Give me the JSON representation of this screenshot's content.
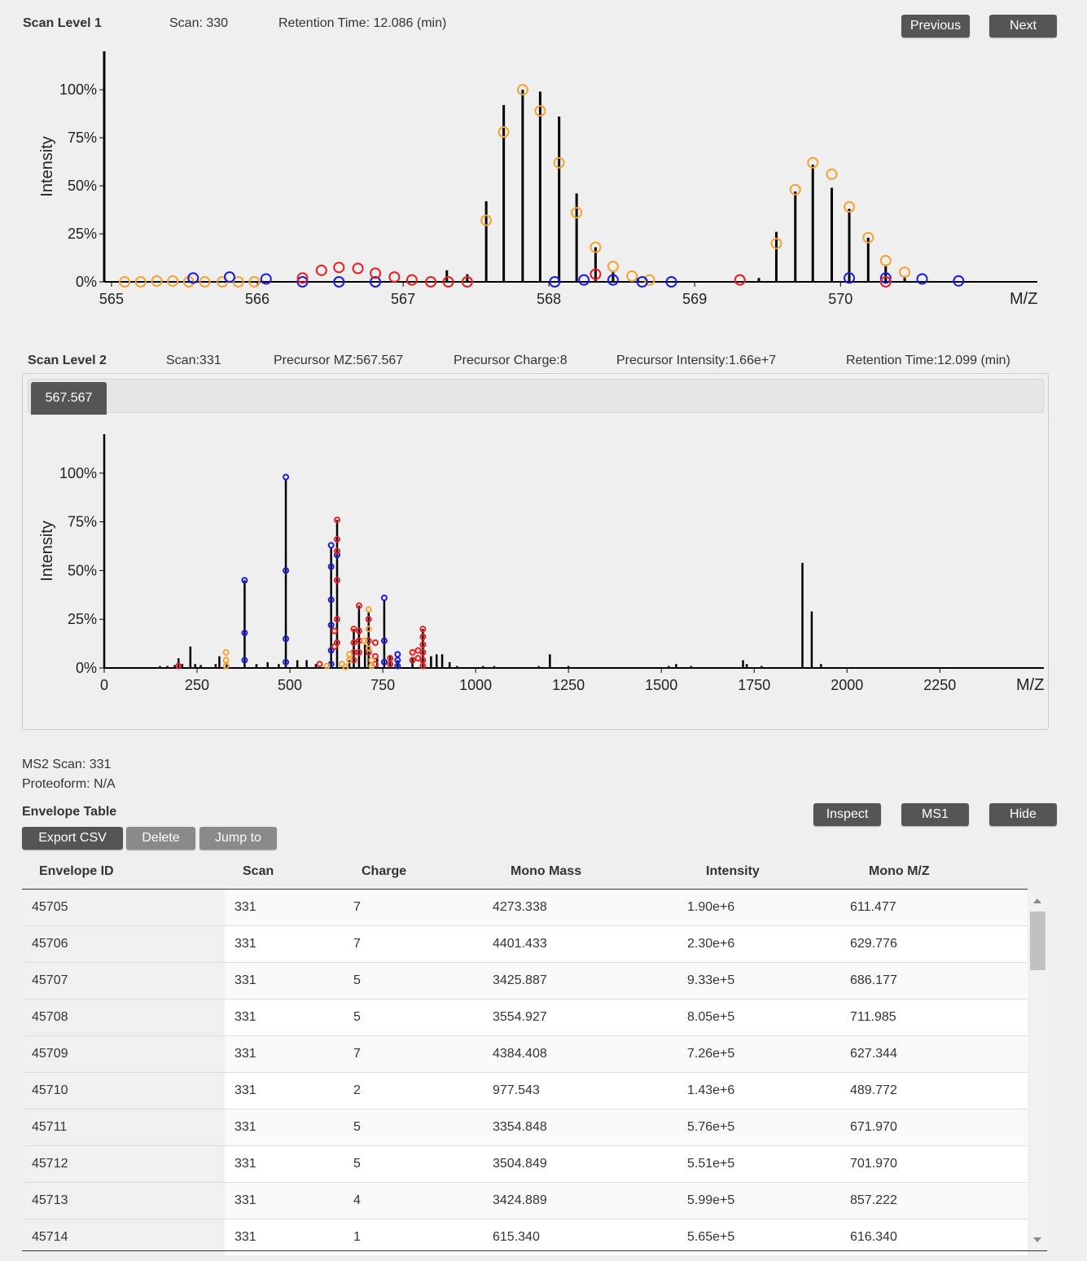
{
  "ms1": {
    "title": "Scan Level 1",
    "scan": "Scan: 330",
    "retention": "Retention Time: 12.086 (min)",
    "prev_label": "Previous",
    "next_label": "Next",
    "ylabel": "Intensity",
    "xlabel": "M/Z"
  },
  "ms2": {
    "title": "Scan Level 2",
    "scan": "Scan:331",
    "precursor_mz": "Precursor MZ:567.567",
    "precursor_charge": "Precursor Charge:8",
    "precursor_intensity": "Precursor Intensity:1.66e+7",
    "retention": "Retention Time:12.099 (min)",
    "tab_label": "567.567",
    "ylabel": "Intensity",
    "xlabel": "M/Z"
  },
  "info": {
    "ms2_scan": "MS2 Scan: 331",
    "proteoform": "Proteoform: N/A",
    "table_title": "Envelope Table"
  },
  "buttons": {
    "inspect": "Inspect",
    "ms1": "MS1",
    "hide": "Hide",
    "export": "Export CSV",
    "delete": "Delete",
    "jump": "Jump to"
  },
  "colors": {
    "orange": "#f7a230",
    "red": "#ee1c1c",
    "blue": "#1a1ae6",
    "button": "#555555"
  },
  "table": {
    "headers": [
      "Envelope ID",
      "Scan",
      "Charge",
      "Mono Mass",
      "Intensity",
      "Mono M/Z"
    ],
    "rows": [
      [
        "45705",
        "331",
        "7",
        "4273.338",
        "1.90e+6",
        "611.477"
      ],
      [
        "45706",
        "331",
        "7",
        "4401.433",
        "2.30e+6",
        "629.776"
      ],
      [
        "45707",
        "331",
        "5",
        "3425.887",
        "9.33e+5",
        "686.177"
      ],
      [
        "45708",
        "331",
        "5",
        "3554.927",
        "8.05e+5",
        "711.985"
      ],
      [
        "45709",
        "331",
        "7",
        "4384.408",
        "7.26e+5",
        "627.344"
      ],
      [
        "45710",
        "331",
        "2",
        "977.543",
        "1.43e+6",
        "489.772"
      ],
      [
        "45711",
        "331",
        "5",
        "3354.848",
        "5.76e+5",
        "671.970"
      ],
      [
        "45712",
        "331",
        "5",
        "3504.849",
        "5.51e+5",
        "701.970"
      ],
      [
        "45713",
        "331",
        "4",
        "3424.889",
        "5.99e+5",
        "857.222"
      ],
      [
        "45714",
        "331",
        "1",
        "615.340",
        "5.65e+5",
        "616.340"
      ]
    ]
  },
  "chart_data": [
    {
      "type": "scatter",
      "ylabel": "Intensity",
      "xlabel": "M/Z",
      "xlim": [
        564.95,
        571.35
      ],
      "ylim": [
        0,
        1.2
      ],
      "x_ticks": [
        565,
        566,
        567,
        568,
        569,
        570
      ],
      "y_ticks": [
        0,
        0.25,
        0.5,
        0.75,
        1.0
      ],
      "y_tick_labels": [
        "0%",
        "25%",
        "50%",
        "75%",
        "100%"
      ],
      "peaks": [
        {
          "x": 564.95,
          "y": 1.2
        },
        {
          "x": 567.3,
          "y": 0.06
        },
        {
          "x": 567.44,
          "y": 0.04
        },
        {
          "x": 567.57,
          "y": 0.42
        },
        {
          "x": 567.69,
          "y": 0.92
        },
        {
          "x": 567.82,
          "y": 1.0
        },
        {
          "x": 567.94,
          "y": 0.99
        },
        {
          "x": 568.07,
          "y": 0.86
        },
        {
          "x": 568.19,
          "y": 0.46
        },
        {
          "x": 568.32,
          "y": 0.18
        },
        {
          "x": 568.44,
          "y": 0.05
        },
        {
          "x": 568.61,
          "y": 0.02
        },
        {
          "x": 569.44,
          "y": 0.02
        },
        {
          "x": 569.56,
          "y": 0.26
        },
        {
          "x": 569.69,
          "y": 0.47
        },
        {
          "x": 569.81,
          "y": 0.61
        },
        {
          "x": 569.94,
          "y": 0.49
        },
        {
          "x": 570.06,
          "y": 0.38
        },
        {
          "x": 570.19,
          "y": 0.23
        },
        {
          "x": 570.31,
          "y": 0.09
        },
        {
          "x": 570.44,
          "y": 0.03
        }
      ],
      "envelopes": [
        {
          "color": "orange",
          "points": [
            [
              565.09,
              0
            ],
            [
              565.2,
              0
            ],
            [
              565.31,
              0.004
            ],
            [
              565.42,
              0.004
            ],
            [
              565.53,
              0
            ],
            [
              565.64,
              0
            ],
            [
              565.76,
              0
            ],
            [
              565.87,
              0
            ],
            [
              565.98,
              0
            ],
            [
              567.57,
              0.32
            ],
            [
              567.69,
              0.78
            ],
            [
              567.82,
              1.0
            ],
            [
              567.94,
              0.89
            ],
            [
              568.07,
              0.62
            ],
            [
              568.19,
              0.36
            ],
            [
              568.32,
              0.18
            ],
            [
              568.44,
              0.08
            ],
            [
              568.57,
              0.03
            ],
            [
              568.69,
              0.01
            ],
            [
              569.56,
              0.2
            ],
            [
              569.69,
              0.48
            ],
            [
              569.81,
              0.62
            ],
            [
              569.94,
              0.56
            ],
            [
              570.06,
              0.39
            ],
            [
              570.19,
              0.23
            ],
            [
              570.31,
              0.11
            ],
            [
              570.44,
              0.05
            ]
          ]
        },
        {
          "color": "blue",
          "points": [
            [
              565.56,
              0.02
            ],
            [
              565.81,
              0.025
            ],
            [
              566.06,
              0.015
            ],
            [
              566.31,
              0
            ],
            [
              566.56,
              0
            ],
            [
              566.81,
              0
            ],
            [
              568.04,
              0
            ],
            [
              568.24,
              0.01
            ],
            [
              568.44,
              0.01
            ],
            [
              568.64,
              0
            ],
            [
              568.84,
              0
            ],
            [
              570.06,
              0.02
            ],
            [
              570.31,
              0.02
            ],
            [
              570.56,
              0.015
            ],
            [
              570.81,
              0.005
            ]
          ]
        },
        {
          "color": "red",
          "points": [
            [
              566.31,
              0.02
            ],
            [
              566.44,
              0.06
            ],
            [
              566.56,
              0.075
            ],
            [
              566.69,
              0.07
            ],
            [
              566.81,
              0.045
            ],
            [
              566.94,
              0.025
            ],
            [
              567.06,
              0.01
            ],
            [
              567.19,
              0
            ],
            [
              567.31,
              0
            ],
            [
              567.44,
              0
            ],
            [
              568.32,
              0.04
            ],
            [
              569.31,
              0.01
            ],
            [
              570.31,
              0
            ]
          ]
        }
      ]
    },
    {
      "type": "scatter",
      "ylabel": "Intensity",
      "xlabel": "M/Z",
      "xlim": [
        0,
        2530
      ],
      "ylim": [
        0,
        1.2
      ],
      "x_ticks": [
        0,
        250,
        500,
        750,
        1000,
        1250,
        1500,
        1750,
        2000,
        2250
      ],
      "y_ticks": [
        0,
        0.25,
        0.5,
        0.75,
        1.0
      ],
      "y_tick_labels": [
        "0%",
        "25%",
        "50%",
        "75%",
        "100%"
      ],
      "peaks": [
        {
          "x": 0,
          "y": 1.2
        },
        {
          "x": 150,
          "y": 0.01
        },
        {
          "x": 170,
          "y": 0.01
        },
        {
          "x": 190,
          "y": 0.015
        },
        {
          "x": 200,
          "y": 0.05
        },
        {
          "x": 210,
          "y": 0.02
        },
        {
          "x": 232,
          "y": 0.11
        },
        {
          "x": 245,
          "y": 0.02
        },
        {
          "x": 260,
          "y": 0.015
        },
        {
          "x": 300,
          "y": 0.02
        },
        {
          "x": 310,
          "y": 0.06
        },
        {
          "x": 330,
          "y": 0.03
        },
        {
          "x": 378,
          "y": 0.45
        },
        {
          "x": 410,
          "y": 0.02
        },
        {
          "x": 440,
          "y": 0.03
        },
        {
          "x": 470,
          "y": 0.02
        },
        {
          "x": 489,
          "y": 0.97
        },
        {
          "x": 520,
          "y": 0.04
        },
        {
          "x": 545,
          "y": 0.04
        },
        {
          "x": 570,
          "y": 0.02
        },
        {
          "x": 611,
          "y": 0.62
        },
        {
          "x": 627,
          "y": 0.76
        },
        {
          "x": 660,
          "y": 0.04
        },
        {
          "x": 672,
          "y": 0.2
        },
        {
          "x": 686,
          "y": 0.32
        },
        {
          "x": 702,
          "y": 0.12
        },
        {
          "x": 712,
          "y": 0.29
        },
        {
          "x": 735,
          "y": 0.05
        },
        {
          "x": 754,
          "y": 0.35
        },
        {
          "x": 770,
          "y": 0.06
        },
        {
          "x": 790,
          "y": 0.04
        },
        {
          "x": 830,
          "y": 0.05
        },
        {
          "x": 858,
          "y": 0.2
        },
        {
          "x": 880,
          "y": 0.06
        },
        {
          "x": 895,
          "y": 0.07
        },
        {
          "x": 910,
          "y": 0.07
        },
        {
          "x": 930,
          "y": 0.03
        },
        {
          "x": 950,
          "y": 0.01
        },
        {
          "x": 1020,
          "y": 0.01
        },
        {
          "x": 1050,
          "y": 0.01
        },
        {
          "x": 1170,
          "y": 0.01
        },
        {
          "x": 1200,
          "y": 0.07
        },
        {
          "x": 1250,
          "y": 0.01
        },
        {
          "x": 1520,
          "y": 0.01
        },
        {
          "x": 1540,
          "y": 0.02
        },
        {
          "x": 1580,
          "y": 0.01
        },
        {
          "x": 1720,
          "y": 0.04
        },
        {
          "x": 1730,
          "y": 0.02
        },
        {
          "x": 1770,
          "y": 0.01
        },
        {
          "x": 1880,
          "y": 0.54
        },
        {
          "x": 1905,
          "y": 0.29
        },
        {
          "x": 1930,
          "y": 0.02
        }
      ],
      "envelopes": [
        {
          "color": "blue",
          "points": [
            [
              378,
              0.45
            ],
            [
              378,
              0.18
            ],
            [
              378,
              0.04
            ],
            [
              489,
              0.98
            ],
            [
              489,
              0.5
            ],
            [
              489,
              0.15
            ],
            [
              489,
              0.03
            ],
            [
              611,
              0.63
            ],
            [
              611,
              0.52
            ],
            [
              611,
              0.35
            ],
            [
              611,
              0.22
            ],
            [
              611,
              0.09
            ],
            [
              611,
              0.02
            ],
            [
              627,
              0.58
            ],
            [
              754,
              0.36
            ],
            [
              754,
              0.14
            ],
            [
              754,
              0.03
            ],
            [
              790,
              0.07
            ],
            [
              790,
              0.04
            ],
            [
              790,
              0.01
            ]
          ]
        },
        {
          "color": "red",
          "points": [
            [
              200,
              0.01
            ],
            [
              580,
              0.02
            ],
            [
              620,
              0.19
            ],
            [
              620,
              0.11
            ],
            [
              627,
              0.76
            ],
            [
              627,
              0.66
            ],
            [
              627,
              0.6
            ],
            [
              627,
              0.45
            ],
            [
              627,
              0.25
            ],
            [
              627,
              0.13
            ],
            [
              686,
              0.32
            ],
            [
              686,
              0.19
            ],
            [
              686,
              0.14
            ],
            [
              686,
              0.08
            ],
            [
              672,
              0.2
            ],
            [
              672,
              0.13
            ],
            [
              672,
              0.08
            ],
            [
              672,
              0.04
            ],
            [
              712,
              0.25
            ],
            [
              712,
              0.14
            ],
            [
              712,
              0.08
            ],
            [
              730,
              0.13
            ],
            [
              730,
              0.06
            ],
            [
              730,
              0.02
            ],
            [
              770,
              0.05
            ],
            [
              770,
              0.02
            ],
            [
              830,
              0.08
            ],
            [
              830,
              0.04
            ],
            [
              845,
              0.09
            ],
            [
              845,
              0.05
            ],
            [
              858,
              0.2
            ],
            [
              858,
              0.16
            ],
            [
              858,
              0.12
            ],
            [
              858,
              0.08
            ],
            [
              858,
              0.04
            ],
            [
              858,
              0.01
            ]
          ]
        },
        {
          "color": "orange",
          "points": [
            [
              328,
              0.08
            ],
            [
              328,
              0.04
            ],
            [
              328,
              0.01
            ],
            [
              600,
              0.01
            ],
            [
              640,
              0.02
            ],
            [
              650,
              0.005
            ],
            [
              660,
              0.04
            ],
            [
              700,
              0.14
            ],
            [
              712,
              0.3
            ],
            [
              712,
              0.2
            ],
            [
              712,
              0.1
            ],
            [
              720,
              0.04
            ],
            [
              720,
              0.01
            ],
            [
              660,
              0.07
            ]
          ]
        }
      ]
    }
  ]
}
